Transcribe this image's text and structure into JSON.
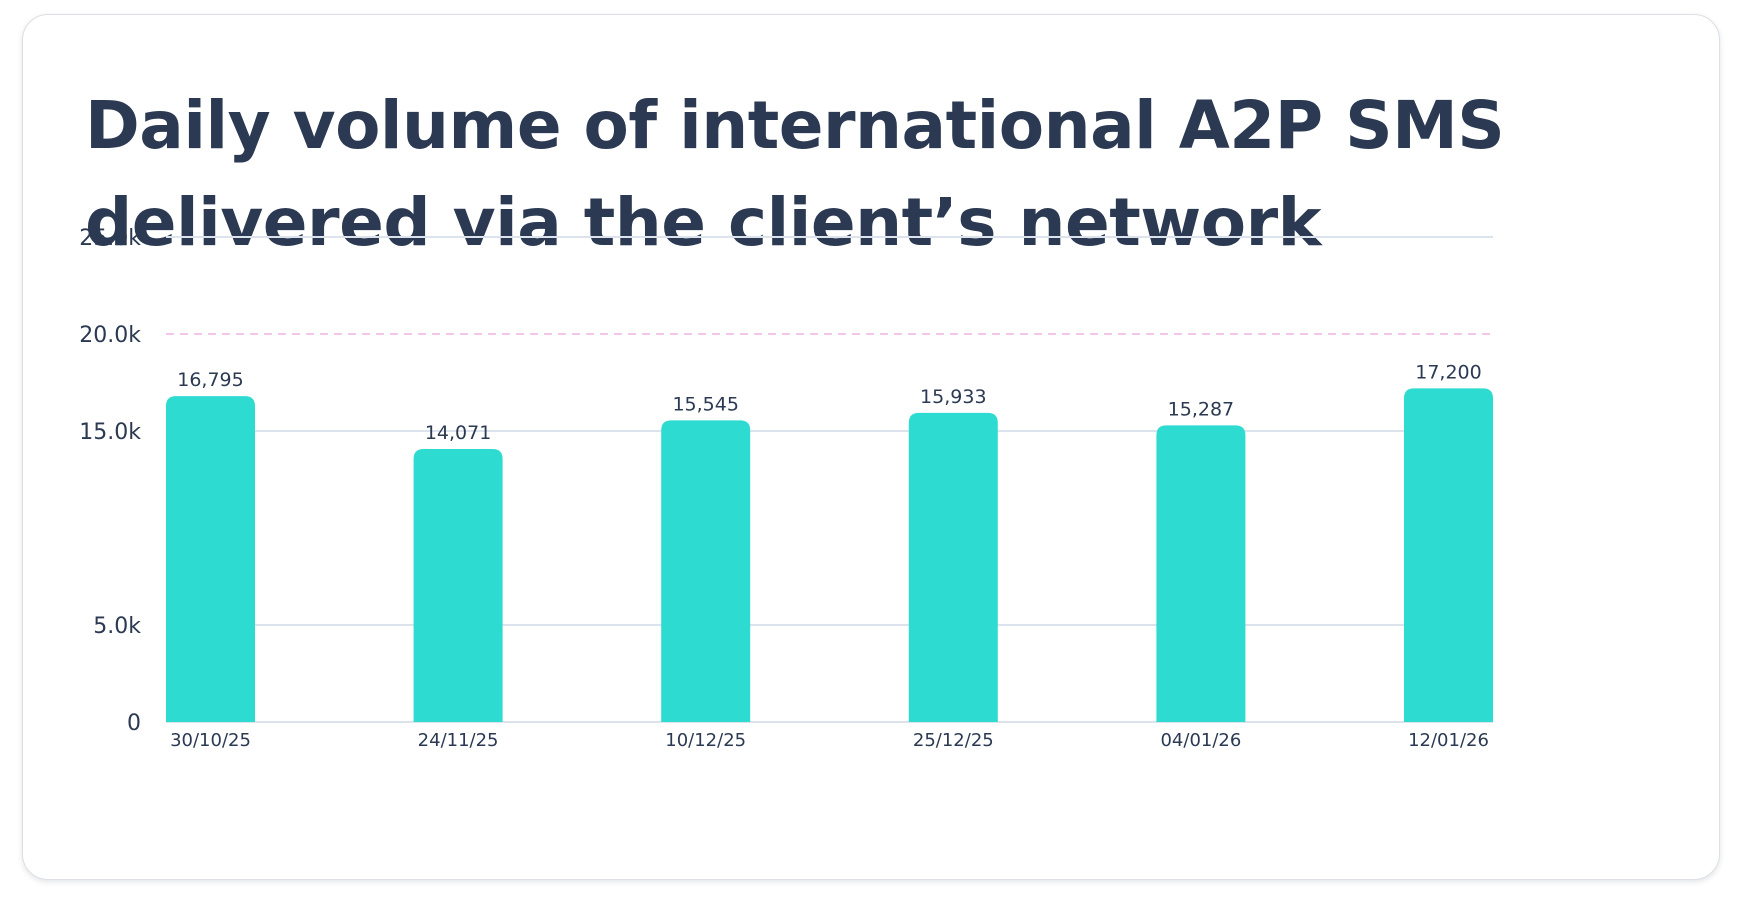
{
  "title": "Daily volume of international A2P SMS delivered via the client’s network",
  "chart_data": {
    "type": "bar",
    "title": "Daily volume of international A2P SMS delivered via the client’s network",
    "xlabel": "",
    "ylabel": "",
    "categories": [
      "30/10/25",
      "24/11/25",
      "10/12/25",
      "25/12/25",
      "04/01/26",
      "12/01/26"
    ],
    "values": [
      16795,
      14071,
      15545,
      15933,
      15287,
      17200
    ],
    "data_labels": [
      "16,795",
      "14,071",
      "15,545",
      "15,933",
      "15,287",
      "17,200"
    ],
    "y_ticks": [
      {
        "label": "0",
        "value": 0
      },
      {
        "label": "5.0k",
        "value": 5000
      },
      {
        "label": "15.0k",
        "value": 15000
      },
      {
        "label": "20.0k",
        "value": 20000
      },
      {
        "label": "25.0k",
        "value": 25000
      }
    ],
    "ylim": [
      0,
      25000
    ],
    "reference_line": {
      "value": 20000,
      "style": "dashed"
    },
    "grid": true,
    "legend": "none",
    "colors": {
      "bar": "#2edbd1",
      "grid": "#dde3ec",
      "reference_line": "#f6c6ea",
      "text": "#2b3a52"
    }
  }
}
